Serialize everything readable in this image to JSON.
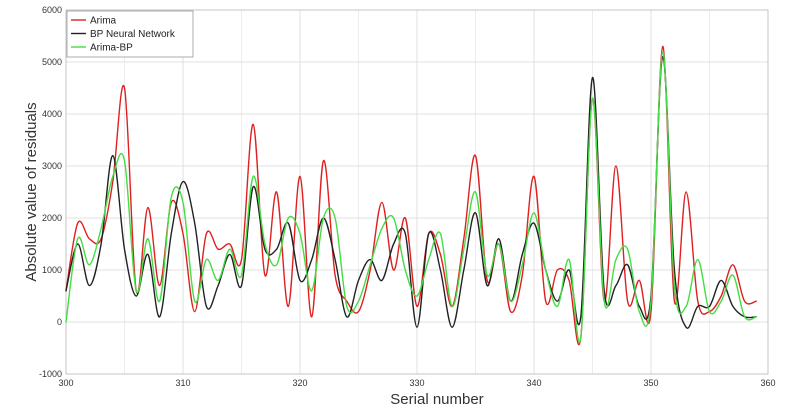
{
  "chart_data": {
    "type": "line",
    "title": "",
    "xlabel": "Serial number",
    "ylabel": "Absolute value of residuals",
    "xlim": [
      300,
      360
    ],
    "ylim": [
      -1000,
      6000
    ],
    "xticks": [
      300,
      310,
      320,
      330,
      340,
      350,
      360
    ],
    "yticks": [
      -1000,
      0,
      1000,
      2000,
      3000,
      4000,
      5000,
      6000
    ],
    "grid": true,
    "legend_position": "top-left",
    "x": [
      300,
      301,
      302,
      303,
      304,
      305,
      306,
      307,
      308,
      309,
      310,
      311,
      312,
      313,
      314,
      315,
      316,
      317,
      318,
      319,
      320,
      321,
      322,
      323,
      324,
      325,
      326,
      327,
      328,
      329,
      330,
      331,
      332,
      333,
      334,
      335,
      336,
      337,
      338,
      339,
      340,
      341,
      342,
      343,
      344,
      345,
      346,
      347,
      348,
      349,
      350,
      351,
      352,
      353,
      354,
      355,
      356,
      357,
      358,
      359
    ],
    "series": [
      {
        "name": "Arima",
        "color": "#e02020",
        "values": [
          600,
          1900,
          1600,
          1600,
          2700,
          4500,
          600,
          2200,
          700,
          2300,
          1700,
          200,
          1700,
          1400,
          1500,
          1200,
          3800,
          900,
          2500,
          300,
          2800,
          100,
          3100,
          900,
          400,
          200,
          1000,
          2300,
          1000,
          2000,
          300,
          1700,
          1300,
          300,
          1600,
          3200,
          800,
          1500,
          200,
          900,
          2800,
          400,
          1000,
          800,
          -300,
          4300,
          400,
          3000,
          400,
          800,
          200,
          5300,
          400,
          2500,
          400,
          200,
          500,
          1100,
          400,
          400
        ]
      },
      {
        "name": "BP Neural Network",
        "color": "#222222",
        "values": [
          600,
          1500,
          700,
          1500,
          3200,
          1400,
          500,
          1300,
          100,
          1700,
          2700,
          1900,
          300,
          700,
          1300,
          700,
          2600,
          1400,
          1400,
          1900,
          800,
          1200,
          2000,
          1200,
          100,
          800,
          1200,
          800,
          1500,
          1700,
          -100,
          1700,
          1000,
          -100,
          1000,
          2100,
          700,
          1600,
          400,
          1300,
          1900,
          1000,
          400,
          1000,
          100,
          4700,
          600,
          700,
          1100,
          300,
          500,
          5100,
          1000,
          -100,
          300,
          300,
          800,
          300,
          100,
          100
        ]
      },
      {
        "name": "Arima-BP",
        "color": "#44dd44",
        "values": [
          0,
          1600,
          1100,
          1800,
          2800,
          3100,
          600,
          1600,
          400,
          2400,
          2300,
          400,
          1200,
          800,
          1400,
          900,
          2800,
          1500,
          1100,
          2000,
          1700,
          600,
          2000,
          2000,
          300,
          400,
          1100,
          1800,
          2000,
          1000,
          500,
          1200,
          1700,
          300,
          1400,
          2500,
          900,
          1500,
          400,
          1100,
          2100,
          1000,
          300,
          1200,
          -300,
          4300,
          400,
          1200,
          1400,
          200,
          400,
          5200,
          700,
          300,
          1200,
          200,
          400,
          900,
          100,
          100
        ]
      }
    ]
  }
}
